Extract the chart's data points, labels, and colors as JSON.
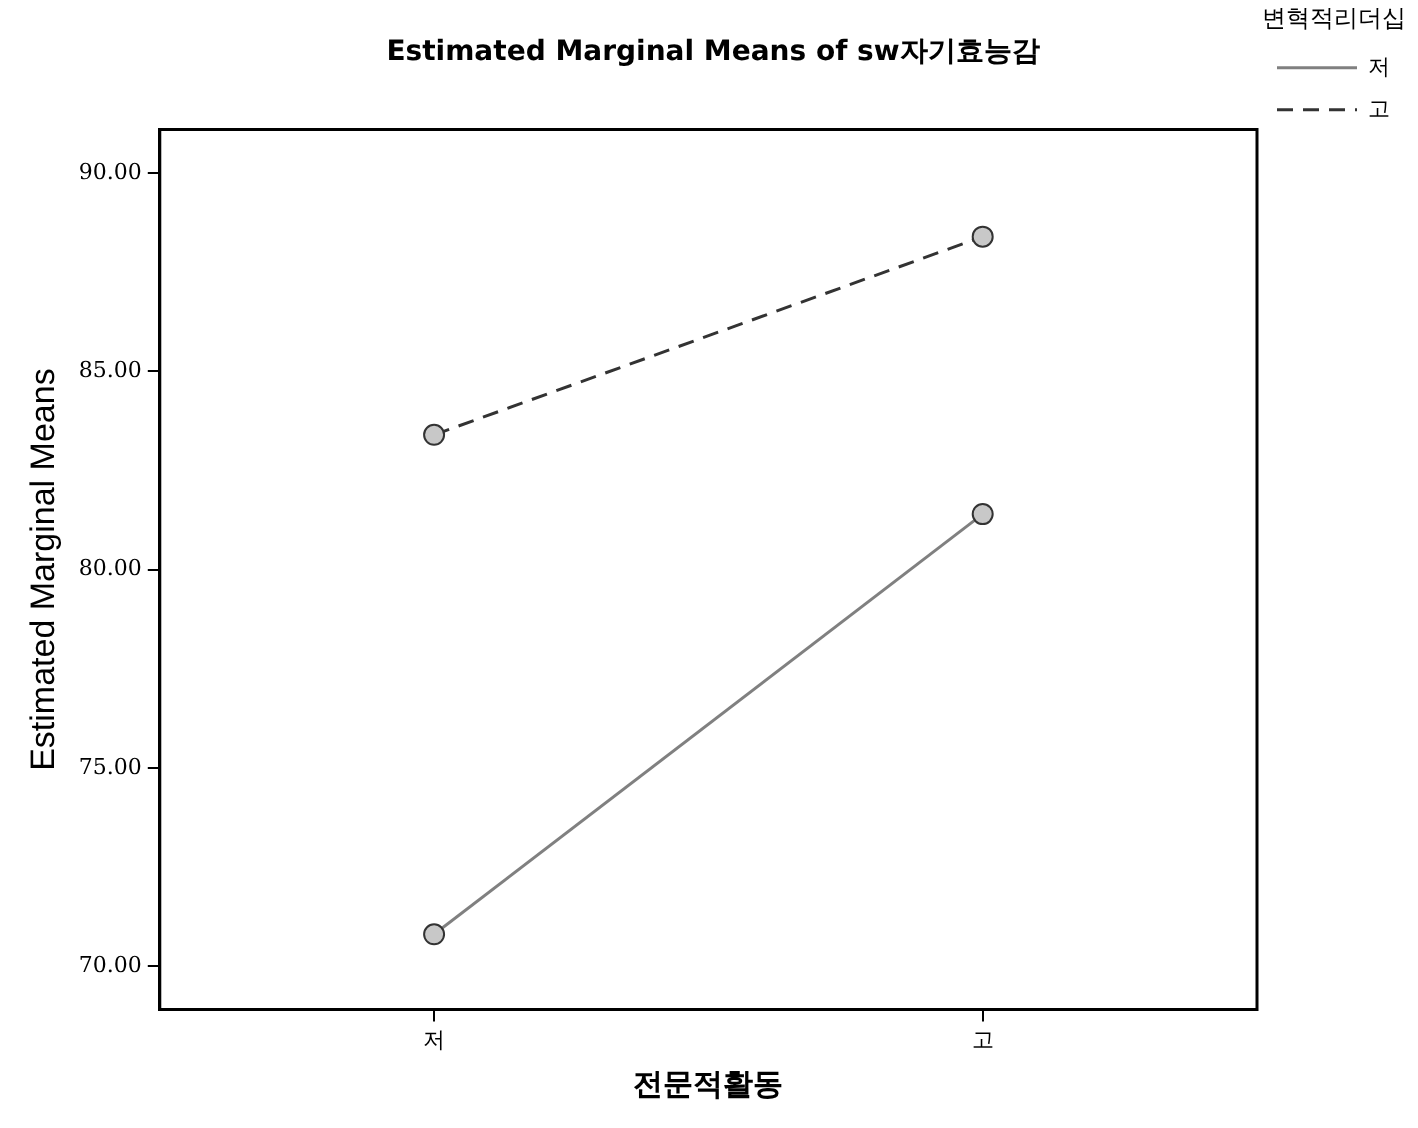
{
  "chart_data": {
    "type": "line",
    "title": "Estimated Marginal Means of sw자기효능감",
    "xlabel": "전문적활동",
    "ylabel": "Estimated Marginal Means",
    "legend_title": "변혁적리더십",
    "categories": [
      "저",
      "고"
    ],
    "series": [
      {
        "name": "저",
        "color": "#808080",
        "values": [
          70.8,
          81.4
        ],
        "line_style": "solid"
      },
      {
        "name": "고",
        "color": "#333333",
        "values": [
          83.4,
          88.4
        ],
        "line_style": "dashed"
      }
    ],
    "ylim": [
      68.9,
      91.1
    ],
    "yticks": [
      {
        "value": 70,
        "label": "70.00"
      },
      {
        "value": 75,
        "label": "75.00"
      },
      {
        "value": 80,
        "label": "80.00"
      },
      {
        "value": 85,
        "label": "85.00"
      },
      {
        "value": 90,
        "label": "90.00"
      }
    ],
    "grid": false,
    "legend": "top right",
    "marker": "circle"
  }
}
